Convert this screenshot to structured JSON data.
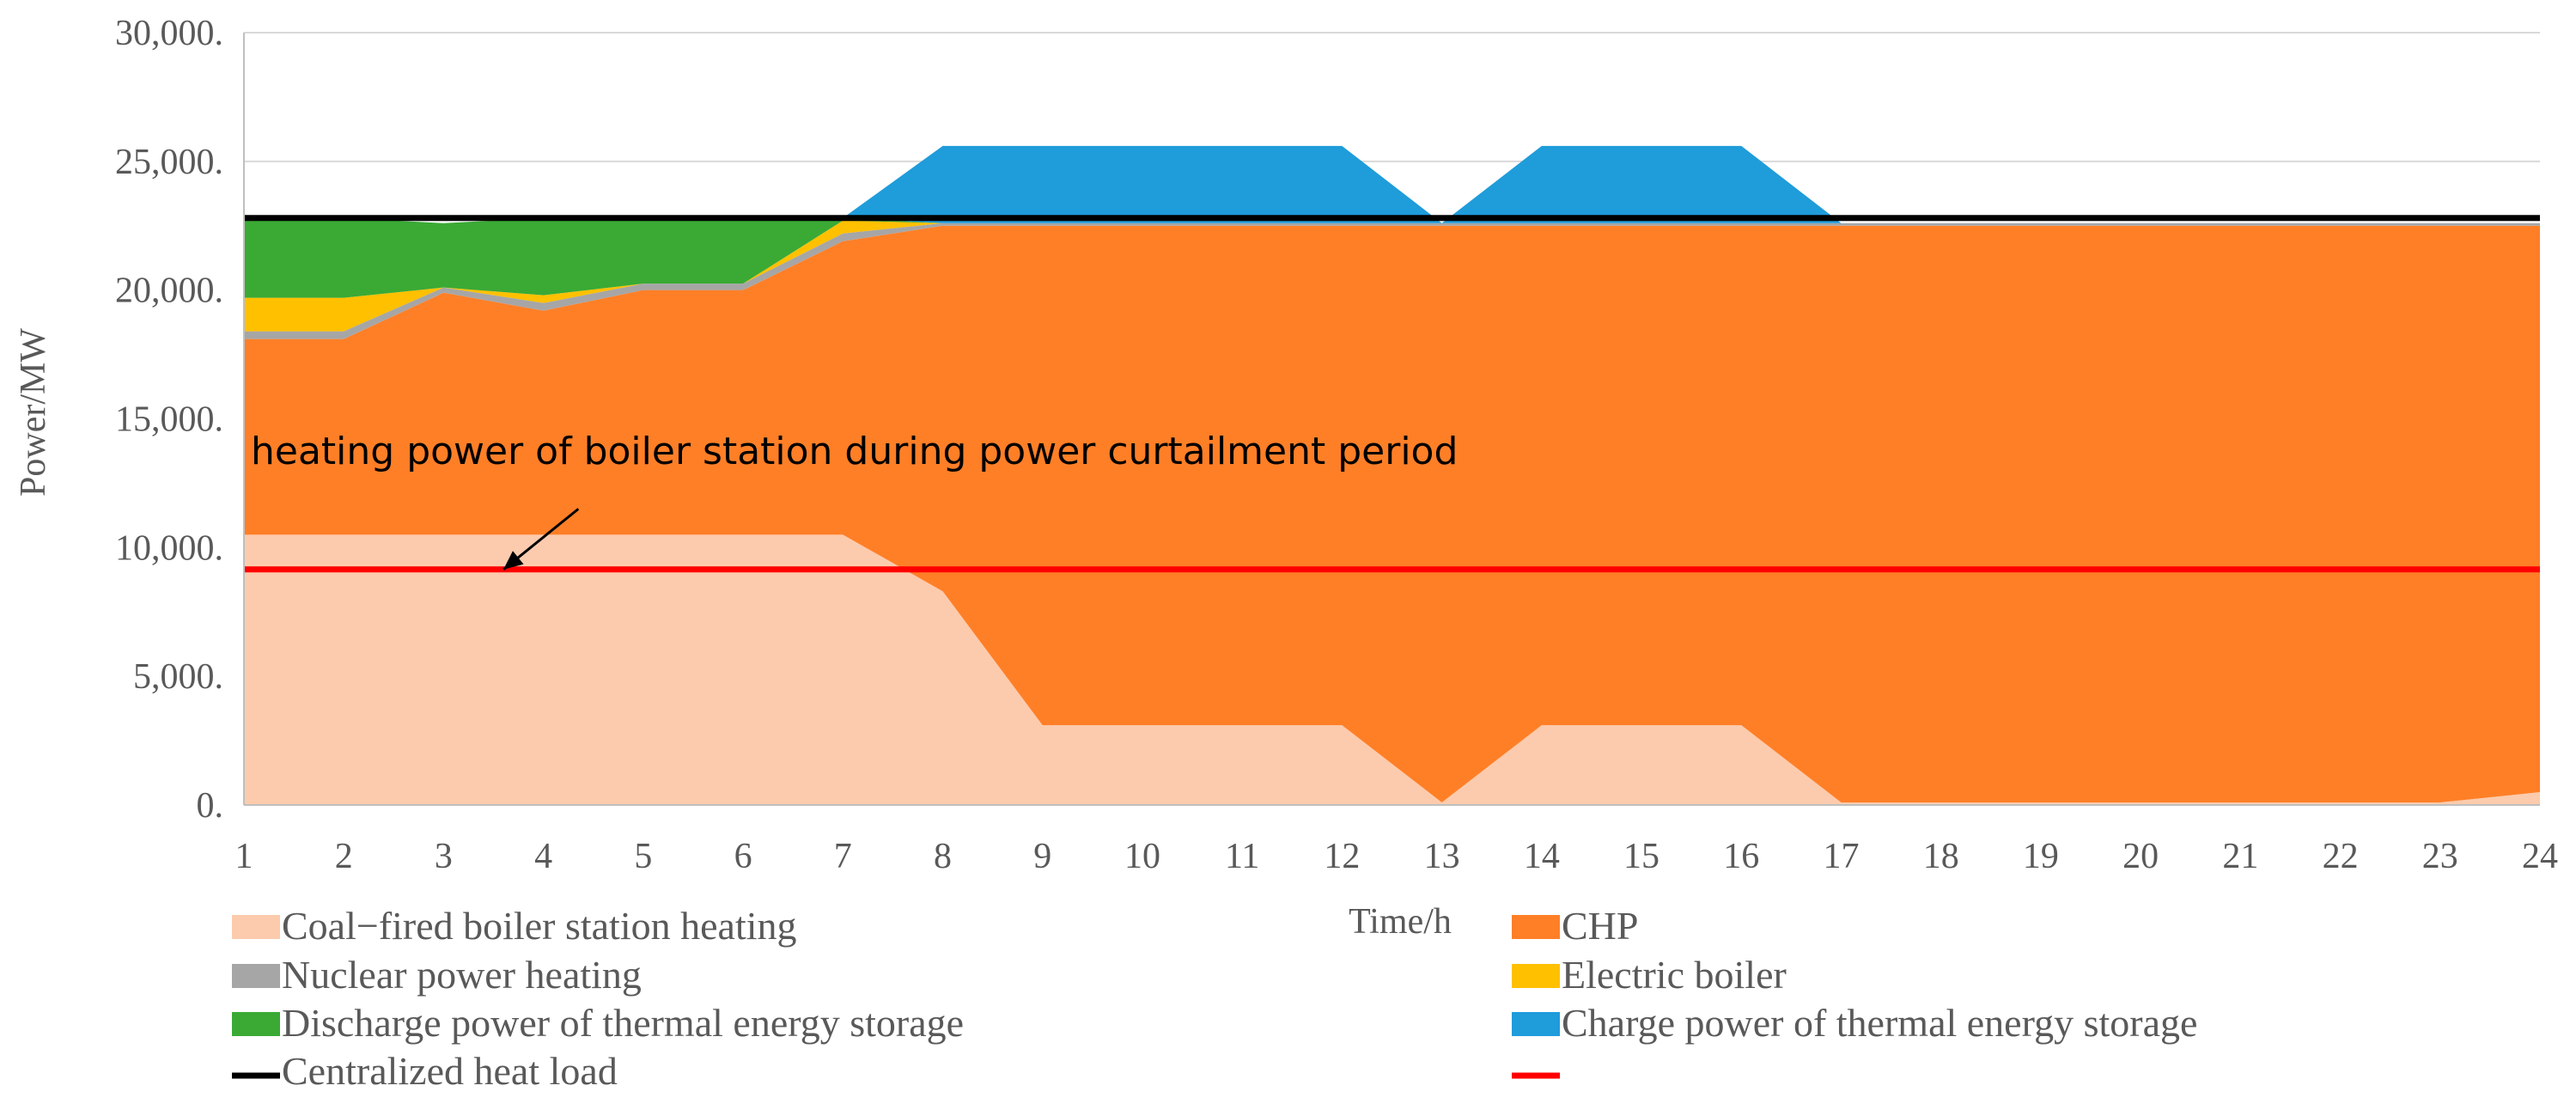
{
  "chart_data": {
    "type": "area",
    "xlabel": "Time/h",
    "ylabel": "Power/MW",
    "ylim": [
      0,
      30000
    ],
    "y_ticks": [
      0,
      5000,
      10000,
      15000,
      20000,
      25000,
      30000
    ],
    "y_tick_labels": [
      "0.",
      "5,000.",
      "10,000.",
      "15,000.",
      "20,000.",
      "25,000.",
      "30,000."
    ],
    "x": [
      1,
      2,
      3,
      4,
      5,
      6,
      7,
      8,
      9,
      10,
      11,
      12,
      13,
      14,
      15,
      16,
      17,
      18,
      19,
      20,
      21,
      22,
      23,
      24
    ],
    "x_tick_labels": [
      "1",
      "2",
      "3",
      "4",
      "5",
      "6",
      "7",
      "8",
      "9",
      "10",
      "11",
      "12",
      "13",
      "14",
      "15",
      "16",
      "17",
      "18",
      "19",
      "20",
      "21",
      "22",
      "23",
      "24"
    ],
    "grid": true,
    "legend": "bottom",
    "series": [
      {
        "name": "Coal−fired boiler station heating",
        "kind": "stacked-area",
        "color": "#FCCBAD",
        "values": [
          10500,
          10500,
          10500,
          10500,
          10500,
          10500,
          10500,
          8300,
          3100,
          3100,
          3100,
          3100,
          100,
          3100,
          3100,
          3100,
          100,
          100,
          100,
          100,
          100,
          100,
          100,
          500
        ]
      },
      {
        "name": "CHP",
        "kind": "stacked-area",
        "color": "#FF7F27",
        "values": [
          7600,
          7600,
          9400,
          8700,
          9500,
          9500,
          11400,
          14200,
          19400,
          19400,
          19400,
          19400,
          22400,
          19400,
          19400,
          19400,
          22400,
          22400,
          22400,
          22400,
          22400,
          22400,
          22400,
          22000
        ]
      },
      {
        "name": "Nuclear power heating",
        "kind": "stacked-area",
        "color": "#A6A6A6",
        "values": [
          300,
          300,
          200,
          300,
          250,
          250,
          300,
          100,
          100,
          100,
          100,
          100,
          100,
          100,
          100,
          100,
          100,
          100,
          100,
          100,
          100,
          100,
          100,
          100
        ]
      },
      {
        "name": "Electric boiler",
        "kind": "stacked-area",
        "color": "#FFC000",
        "values": [
          1300,
          1300,
          0,
          300,
          0,
          0,
          500,
          0,
          0,
          0,
          0,
          0,
          0,
          0,
          0,
          0,
          0,
          0,
          0,
          0,
          0,
          0,
          0,
          0
        ]
      },
      {
        "name": "Discharge power of thermal energy storage",
        "kind": "stacked-area",
        "color": "#3AAA35",
        "values": [
          3100,
          3100,
          2500,
          3000,
          2550,
          2550,
          100,
          0,
          0,
          0,
          0,
          0,
          0,
          0,
          0,
          0,
          0,
          0,
          0,
          0,
          0,
          0,
          0,
          0
        ]
      },
      {
        "name": "Charge power of thermal energy storage",
        "kind": "stacked-area",
        "color": "#1F9CDA",
        "values": [
          0,
          0,
          0,
          0,
          0,
          0,
          0,
          3000,
          3000,
          3000,
          3000,
          3000,
          0,
          3000,
          3000,
          3000,
          0,
          0,
          0,
          0,
          0,
          0,
          0,
          0
        ]
      },
      {
        "name": "Centralized heat load",
        "kind": "line",
        "color": "#000000",
        "values": [
          22800,
          22800,
          22800,
          22800,
          22800,
          22800,
          22800,
          22800,
          22800,
          22800,
          22800,
          22800,
          22800,
          22800,
          22800,
          22800,
          22800,
          22800,
          22800,
          22800,
          22800,
          22800,
          22800,
          22800
        ]
      },
      {
        "kind": "line",
        "color": "#FF0000",
        "values": [
          9150,
          9150,
          9150,
          9150,
          9150,
          9150,
          9150,
          9150,
          9150,
          9150,
          9150,
          9150,
          9150,
          9150,
          9150,
          9150,
          9150,
          9150,
          9150,
          9150,
          9150,
          9150,
          9150,
          9150
        ]
      }
    ],
    "annotation": {
      "text": "heating power of boiler station during power curtailment period",
      "arrow_x": 3.6,
      "arrow_y": 9150,
      "arrow_from_x": 4.35,
      "arrow_from_y": 11500
    },
    "legend_entries": [
      {
        "label": "Coal−fired boiler station heating",
        "color": "#FCCBAD",
        "marker": "box"
      },
      {
        "label": "CHP",
        "color": "#FF7F27",
        "marker": "box"
      },
      {
        "label": "Nuclear power heating",
        "color": "#A6A6A6",
        "marker": "box"
      },
      {
        "label": "Electric boiler",
        "color": "#FFC000",
        "marker": "box"
      },
      {
        "label": "Discharge power of thermal energy storage",
        "color": "#3AAA35",
        "marker": "box"
      },
      {
        "label": "Charge power of thermal energy storage",
        "color": "#1F9CDA",
        "marker": "box"
      },
      {
        "label": "Centralized heat load",
        "color": "#000000",
        "marker": "line"
      },
      {
        "label": "",
        "color": "#FF0000",
        "marker": "line"
      }
    ]
  }
}
